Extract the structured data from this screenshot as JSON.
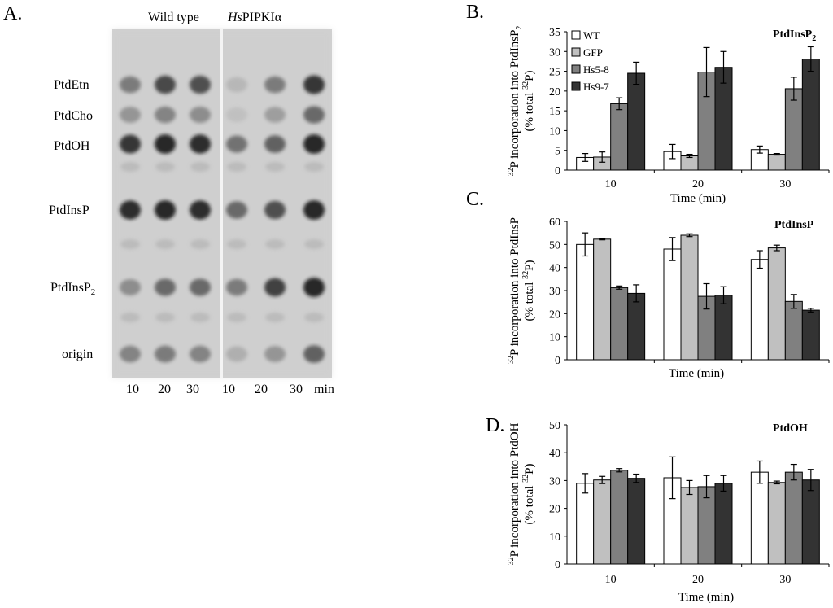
{
  "gel": {
    "panel_letter": "A.",
    "header_wildtype": "Wild type",
    "header_hs_italic": "Hs",
    "header_hs_rest": "PIPKIα",
    "lipid_labels": [
      "PtdEtn",
      "PtdCho",
      "PtdOH",
      "PtdInsP",
      "PtdInsP",
      "origin"
    ],
    "lipid_subscripts": [
      "",
      "",
      "",
      "",
      "2",
      ""
    ],
    "lane_labels": [
      "10",
      "20",
      "30",
      "10",
      "20",
      "30"
    ],
    "unit_label": "min"
  },
  "chart_data": [
    {
      "type": "bar",
      "panel_letter": "B.",
      "title": "PtdInsP",
      "title_subscript": "2",
      "categories": [
        "10",
        "20",
        "30"
      ],
      "xlabel": "Time (min)",
      "ylabel_line1_pre": "",
      "ylabel_line1_sup": "32",
      "ylabel_line1_post": "P incorporation into PtdInsP",
      "ylabel_line1_sub": "2",
      "ylabel_line2_pre": "(% total ",
      "ylabel_line2_sup": "32",
      "ylabel_line2_post": "P)",
      "ylim": [
        0,
        35
      ],
      "yticks": [
        0,
        5,
        10,
        15,
        20,
        25,
        30,
        35
      ],
      "series": [
        {
          "name": "WT",
          "color": "#ffffff",
          "values": [
            3.2,
            4.7,
            5.2
          ],
          "errors": [
            1.0,
            1.8,
            0.9
          ]
        },
        {
          "name": "GFP",
          "color": "#c0c0c0",
          "values": [
            3.3,
            3.6,
            4.0
          ],
          "errors": [
            1.3,
            0.4,
            0.2
          ]
        },
        {
          "name": "Hs5-8",
          "color": "#808080",
          "values": [
            16.8,
            24.8,
            20.6
          ],
          "errors": [
            1.5,
            6.2,
            2.9
          ]
        },
        {
          "name": "Hs9-7",
          "color": "#333333",
          "values": [
            24.5,
            26.0,
            28.1
          ],
          "errors": [
            2.8,
            4.0,
            3.1
          ]
        }
      ],
      "legend": "top-left"
    },
    {
      "type": "bar",
      "panel_letter": "C.",
      "title": "PtdInsP",
      "title_subscript": "",
      "categories": [
        "10",
        "20",
        "30"
      ],
      "xlabel": "Time (min)",
      "ylabel_line1_pre": "",
      "ylabel_line1_sup": "32",
      "ylabel_line1_post": "P incorporation into PtdInsP",
      "ylabel_line1_sub": "",
      "ylabel_line2_pre": "(% total ",
      "ylabel_line2_sup": "32",
      "ylabel_line2_post": "P)",
      "ylim": [
        0,
        60
      ],
      "yticks": [
        0,
        10,
        20,
        30,
        40,
        50,
        60
      ],
      "series": [
        {
          "name": "WT",
          "color": "#ffffff",
          "values": [
            50.0,
            48.0,
            43.5
          ],
          "errors": [
            5.0,
            5.0,
            3.8
          ]
        },
        {
          "name": "GFP",
          "color": "#c0c0c0",
          "values": [
            52.3,
            54.0,
            48.5
          ],
          "errors": [
            0.3,
            0.6,
            1.2
          ]
        },
        {
          "name": "Hs5-8",
          "color": "#808080",
          "values": [
            31.3,
            27.5,
            25.3
          ],
          "errors": [
            0.7,
            5.5,
            3.0
          ]
        },
        {
          "name": "Hs9-7",
          "color": "#333333",
          "values": [
            28.8,
            28.0,
            21.5
          ],
          "errors": [
            3.7,
            3.7,
            0.8
          ]
        }
      ]
    },
    {
      "type": "bar",
      "panel_letter": "D.",
      "title": "PtdOH",
      "title_subscript": "",
      "categories": [
        "10",
        "20",
        "30"
      ],
      "xlabel": "Time (min)",
      "ylabel_line1_pre": "",
      "ylabel_line1_sup": "32",
      "ylabel_line1_post": "P incorporation into PtdOH",
      "ylabel_line1_sub": "",
      "ylabel_line2_pre": "(% total ",
      "ylabel_line2_sup": "32",
      "ylabel_line2_post": "P)",
      "ylim": [
        0,
        50
      ],
      "yticks": [
        0,
        10,
        20,
        30,
        40,
        50
      ],
      "series": [
        {
          "name": "WT",
          "color": "#ffffff",
          "values": [
            29.0,
            31.0,
            33.0
          ],
          "errors": [
            3.5,
            7.5,
            4.0
          ]
        },
        {
          "name": "GFP",
          "color": "#c0c0c0",
          "values": [
            30.2,
            27.5,
            29.3
          ],
          "errors": [
            1.3,
            2.5,
            0.5
          ]
        },
        {
          "name": "Hs5-8",
          "color": "#808080",
          "values": [
            33.7,
            27.8,
            33.0
          ],
          "errors": [
            0.6,
            4.0,
            2.8
          ]
        },
        {
          "name": "Hs9-7",
          "color": "#333333",
          "values": [
            30.8,
            29.0,
            30.2
          ],
          "errors": [
            1.5,
            2.8,
            3.8
          ]
        }
      ]
    }
  ]
}
